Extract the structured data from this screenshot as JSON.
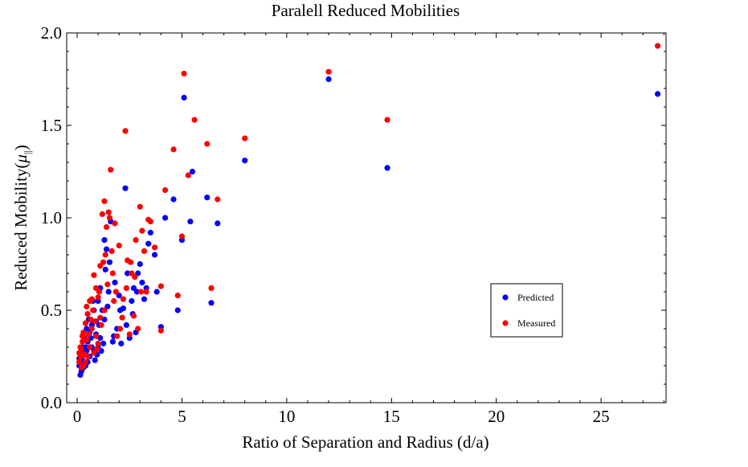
{
  "chart_data": {
    "type": "scatter",
    "title": "Paralell Reduced Mobilities",
    "xlabel": "Ratio of Separation and Radius (d/a)",
    "ylabel": "Reduced Mobility",
    "ylabel_symbol": "μ",
    "ylabel_subscript": "||",
    "xlim": [
      -0.5,
      28.1
    ],
    "ylim": [
      0,
      2.0
    ],
    "xticks": [
      "0",
      "5",
      "10",
      "15",
      "20",
      "25"
    ],
    "yticks": [
      "0.0",
      "0.5",
      "1.0",
      "1.5",
      "2.0"
    ],
    "grid": false,
    "legend_position": "lower-right",
    "series": [
      {
        "name": "Predicted",
        "color": "#0000ff",
        "points": [
          [
            27.7,
            1.67
          ],
          [
            14.8,
            1.27
          ],
          [
            12.0,
            1.75
          ],
          [
            8.0,
            1.31
          ],
          [
            6.7,
            0.97
          ],
          [
            6.4,
            0.54
          ],
          [
            6.2,
            1.11
          ],
          [
            5.4,
            0.98
          ],
          [
            5.5,
            1.25
          ],
          [
            5.1,
            1.65
          ],
          [
            5.0,
            0.88
          ],
          [
            4.8,
            0.5
          ],
          [
            4.6,
            1.1
          ],
          [
            4.2,
            1.0
          ],
          [
            4.0,
            0.41
          ],
          [
            3.8,
            0.6
          ],
          [
            3.7,
            0.8
          ],
          [
            3.5,
            0.92
          ],
          [
            3.4,
            0.86
          ],
          [
            3.2,
            0.56
          ],
          [
            3.0,
            0.75
          ],
          [
            2.9,
            0.7
          ],
          [
            2.8,
            0.38
          ],
          [
            2.7,
            0.62
          ],
          [
            2.6,
            0.55
          ],
          [
            2.5,
            0.35
          ],
          [
            2.4,
            0.7
          ],
          [
            2.3,
            1.16
          ],
          [
            2.2,
            0.51
          ],
          [
            2.1,
            0.32
          ],
          [
            2.0,
            0.58
          ],
          [
            1.9,
            0.4
          ],
          [
            1.8,
            0.65
          ],
          [
            1.7,
            0.33
          ],
          [
            1.6,
            0.98
          ],
          [
            1.5,
            0.6
          ],
          [
            1.4,
            0.83
          ],
          [
            1.3,
            0.88
          ],
          [
            1.3,
            0.45
          ],
          [
            1.2,
            0.5
          ],
          [
            1.1,
            0.35
          ],
          [
            1.1,
            0.62
          ],
          [
            1.0,
            0.55
          ],
          [
            1.0,
            0.3
          ],
          [
            0.9,
            0.44
          ],
          [
            0.9,
            0.37
          ],
          [
            0.8,
            0.5
          ],
          [
            0.8,
            0.28
          ],
          [
            0.7,
            0.42
          ],
          [
            0.7,
            0.3
          ],
          [
            0.6,
            0.38
          ],
          [
            0.6,
            0.25
          ],
          [
            0.5,
            0.33
          ],
          [
            0.5,
            0.22
          ],
          [
            0.4,
            0.3
          ],
          [
            0.4,
            0.2
          ],
          [
            0.3,
            0.27
          ],
          [
            0.3,
            0.19
          ],
          [
            0.25,
            0.23
          ],
          [
            0.2,
            0.25
          ],
          [
            0.2,
            0.17
          ],
          [
            0.15,
            0.21
          ],
          [
            0.15,
            0.15
          ],
          [
            0.1,
            0.2
          ],
          [
            0.1,
            0.24
          ],
          [
            0.35,
            0.35
          ],
          [
            0.45,
            0.28
          ],
          [
            0.55,
            0.45
          ],
          [
            0.65,
            0.35
          ],
          [
            0.75,
            0.55
          ],
          [
            1.05,
            0.42
          ],
          [
            1.15,
            0.28
          ],
          [
            1.25,
            0.32
          ],
          [
            1.45,
            0.52
          ],
          [
            1.75,
            0.36
          ],
          [
            2.05,
            0.5
          ],
          [
            2.35,
            0.42
          ],
          [
            2.65,
            0.48
          ],
          [
            2.85,
            0.6
          ],
          [
            3.1,
            0.65
          ],
          [
            3.3,
            0.62
          ],
          [
            1.35,
            0.72
          ],
          [
            1.55,
            0.76
          ],
          [
            0.85,
            0.23
          ],
          [
            0.95,
            0.26
          ],
          [
            0.45,
            0.4
          ],
          [
            0.25,
            0.3
          ]
        ]
      },
      {
        "name": "Measured",
        "color": "#ff0000",
        "points": [
          [
            27.7,
            1.93
          ],
          [
            14.8,
            1.53
          ],
          [
            12.0,
            1.79
          ],
          [
            8.0,
            1.43
          ],
          [
            6.7,
            1.1
          ],
          [
            6.4,
            0.62
          ],
          [
            6.2,
            1.4
          ],
          [
            5.6,
            1.53
          ],
          [
            5.3,
            1.23
          ],
          [
            5.1,
            1.78
          ],
          [
            5.0,
            0.9
          ],
          [
            4.8,
            0.58
          ],
          [
            4.6,
            1.37
          ],
          [
            4.2,
            1.15
          ],
          [
            4.0,
            0.39
          ],
          [
            4.0,
            0.63
          ],
          [
            3.7,
            0.84
          ],
          [
            3.5,
            0.98
          ],
          [
            3.3,
            0.6
          ],
          [
            3.2,
            0.82
          ],
          [
            3.1,
            0.93
          ],
          [
            3.0,
            1.06
          ],
          [
            2.9,
            0.4
          ],
          [
            2.8,
            0.88
          ],
          [
            2.7,
            0.47
          ],
          [
            2.6,
            0.7
          ],
          [
            2.5,
            0.37
          ],
          [
            2.4,
            0.77
          ],
          [
            2.3,
            1.47
          ],
          [
            2.2,
            0.56
          ],
          [
            2.0,
            0.85
          ],
          [
            1.9,
            0.36
          ],
          [
            1.8,
            0.97
          ],
          [
            1.7,
            0.7
          ],
          [
            1.6,
            1.26
          ],
          [
            1.5,
            1.03
          ],
          [
            1.4,
            0.95
          ],
          [
            1.3,
            1.09
          ],
          [
            1.3,
            0.5
          ],
          [
            1.2,
            1.02
          ],
          [
            1.1,
            0.74
          ],
          [
            1.1,
            0.46
          ],
          [
            1.0,
            0.57
          ],
          [
            1.0,
            0.32
          ],
          [
            0.9,
            0.62
          ],
          [
            0.9,
            0.36
          ],
          [
            0.8,
            0.69
          ],
          [
            0.8,
            0.27
          ],
          [
            0.7,
            0.56
          ],
          [
            0.7,
            0.4
          ],
          [
            0.6,
            0.55
          ],
          [
            0.6,
            0.3
          ],
          [
            0.5,
            0.48
          ],
          [
            0.5,
            0.25
          ],
          [
            0.4,
            0.43
          ],
          [
            0.4,
            0.22
          ],
          [
            0.3,
            0.38
          ],
          [
            0.3,
            0.2
          ],
          [
            0.25,
            0.33
          ],
          [
            0.2,
            0.28
          ],
          [
            0.2,
            0.19
          ],
          [
            0.15,
            0.25
          ],
          [
            0.15,
            0.3
          ],
          [
            0.1,
            0.22
          ],
          [
            0.1,
            0.27
          ],
          [
            0.35,
            0.26
          ],
          [
            0.45,
            0.34
          ],
          [
            0.55,
            0.37
          ],
          [
            0.65,
            0.45
          ],
          [
            0.75,
            0.5
          ],
          [
            1.05,
            0.6
          ],
          [
            1.15,
            0.42
          ],
          [
            1.25,
            0.76
          ],
          [
            1.45,
            0.64
          ],
          [
            1.75,
            0.55
          ],
          [
            2.05,
            0.4
          ],
          [
            2.35,
            0.62
          ],
          [
            2.55,
            0.76
          ],
          [
            2.75,
            0.68
          ],
          [
            3.05,
            0.6
          ],
          [
            3.4,
            0.99
          ],
          [
            1.55,
            1.0
          ],
          [
            1.35,
            0.8
          ],
          [
            0.85,
            0.44
          ],
          [
            0.95,
            0.29
          ],
          [
            0.45,
            0.52
          ],
          [
            0.25,
            0.36
          ],
          [
            1.65,
            0.82
          ],
          [
            1.85,
            0.6
          ],
          [
            2.15,
            0.46
          ]
        ]
      }
    ]
  }
}
